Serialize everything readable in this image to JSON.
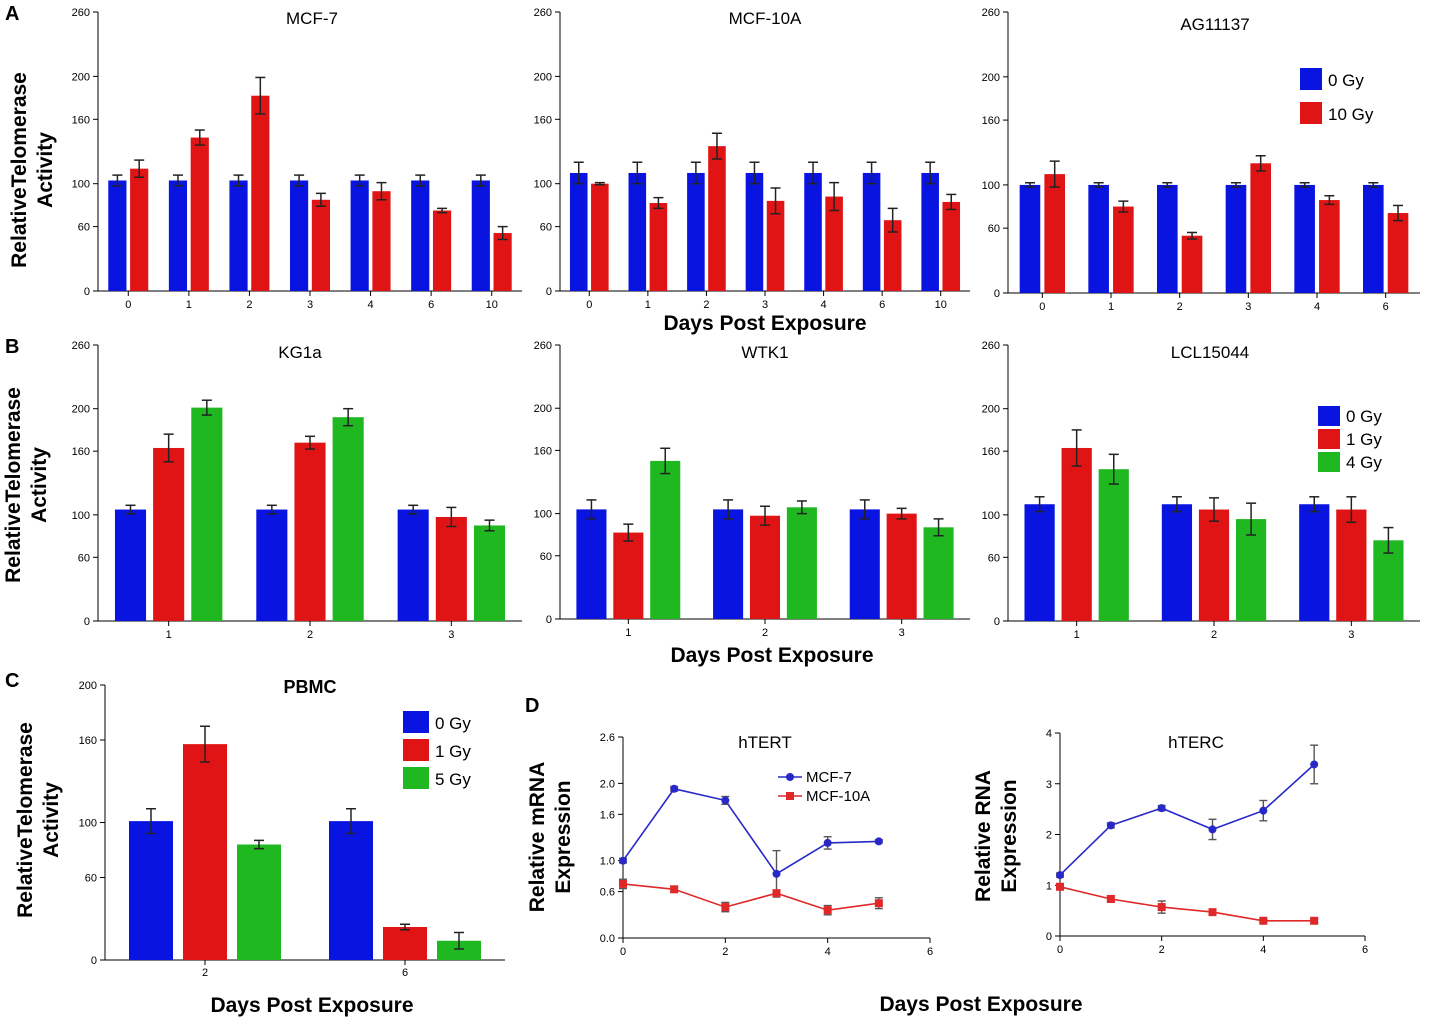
{
  "figure": {
    "panel_labels": [
      "A",
      "B",
      "C",
      "D"
    ],
    "ylabel_telomerase": [
      "RelativeTelomerase",
      "Activity"
    ],
    "ylabel_mrna": [
      "Relative mRNA",
      "Expression"
    ],
    "ylabel_rna": [
      "Relative RNA",
      "Expression"
    ],
    "xlabel": "Days Post Exposure",
    "colors": {
      "g0": "#0a14e0",
      "g1": "#e01414",
      "g2": "#20b820",
      "line_mcf7": "#2828c8",
      "line_mcf10a": "#e02828"
    }
  },
  "chart_data": [
    {
      "id": "A1",
      "type": "bar",
      "title": "MCF-7",
      "categories": [
        "0",
        "1",
        "2",
        "3",
        "4",
        "6",
        "10"
      ],
      "ylim": [
        0,
        260
      ],
      "yticks": [
        0,
        60,
        100,
        160,
        200,
        260
      ],
      "series": [
        {
          "name": "0 Gy",
          "values": [
            103,
            103,
            103,
            103,
            103,
            103,
            103
          ],
          "errors": [
            5,
            5,
            5,
            5,
            5,
            5,
            5
          ]
        },
        {
          "name": "10 Gy",
          "values": [
            114,
            143,
            182,
            85,
            93,
            75,
            54
          ],
          "errors": [
            8,
            7,
            17,
            6,
            8,
            2,
            6
          ]
        }
      ]
    },
    {
      "id": "A2",
      "type": "bar",
      "title": "MCF-10A",
      "categories": [
        "0",
        "1",
        "2",
        "3",
        "4",
        "6",
        "10"
      ],
      "ylim": [
        0,
        260
      ],
      "yticks": [
        0,
        60,
        100,
        160,
        200,
        260
      ],
      "series": [
        {
          "name": "0 Gy",
          "values": [
            110,
            110,
            110,
            110,
            110,
            110,
            110
          ],
          "errors": [
            10,
            10,
            10,
            10,
            10,
            10,
            10
          ]
        },
        {
          "name": "10 Gy",
          "values": [
            100,
            82,
            135,
            84,
            88,
            66,
            83
          ],
          "errors": [
            1,
            5,
            12,
            12,
            13,
            11,
            7
          ]
        }
      ]
    },
    {
      "id": "A3",
      "type": "bar",
      "title": "AG11137",
      "categories": [
        "0",
        "1",
        "2",
        "3",
        "4",
        "6"
      ],
      "ylim": [
        0,
        260
      ],
      "yticks": [
        0,
        60,
        100,
        160,
        200,
        260
      ],
      "legend": [
        "0 Gy",
        "10 Gy"
      ],
      "series": [
        {
          "name": "0 Gy",
          "values": [
            100,
            100,
            100,
            100,
            100,
            100
          ],
          "errors": [
            2,
            2,
            2,
            2,
            2,
            2
          ]
        },
        {
          "name": "10 Gy",
          "values": [
            110,
            80,
            53,
            120,
            86,
            74
          ],
          "errors": [
            12,
            5,
            3,
            7,
            4,
            7
          ]
        }
      ]
    },
    {
      "id": "B1",
      "type": "bar",
      "title": "KG1a",
      "categories": [
        "1",
        "2",
        "3"
      ],
      "ylim": [
        0,
        260
      ],
      "yticks": [
        0,
        60,
        100,
        160,
        200,
        260
      ],
      "series": [
        {
          "name": "0 Gy",
          "values": [
            105,
            105,
            105
          ],
          "errors": [
            4,
            4,
            4
          ]
        },
        {
          "name": "1 Gy",
          "values": [
            163,
            168,
            98
          ],
          "errors": [
            13,
            6,
            9
          ]
        },
        {
          "name": "4 Gy",
          "values": [
            201,
            192,
            90
          ],
          "errors": [
            7,
            8,
            5
          ]
        }
      ]
    },
    {
      "id": "B2",
      "type": "bar",
      "title": "WTK1",
      "categories": [
        "1",
        "2",
        "3"
      ],
      "ylim": [
        0,
        260
      ],
      "yticks": [
        0,
        60,
        100,
        160,
        200,
        260
      ],
      "series": [
        {
          "name": "0 Gy",
          "values": [
            104,
            104,
            104
          ],
          "errors": [
            9,
            9,
            9
          ]
        },
        {
          "name": "1 Gy",
          "values": [
            82,
            98,
            100
          ],
          "errors": [
            8,
            9,
            5
          ]
        },
        {
          "name": "4 Gy",
          "values": [
            150,
            106,
            87
          ],
          "errors": [
            12,
            6,
            8
          ]
        }
      ]
    },
    {
      "id": "B3",
      "type": "bar",
      "title": "LCL15044",
      "categories": [
        "1",
        "2",
        "3"
      ],
      "ylim": [
        0,
        260
      ],
      "yticks": [
        0,
        60,
        100,
        160,
        200,
        260
      ],
      "legend": [
        "0 Gy",
        "1 Gy",
        "4 Gy"
      ],
      "series": [
        {
          "name": "0 Gy",
          "values": [
            110,
            110,
            110
          ],
          "errors": [
            7,
            7,
            7
          ]
        },
        {
          "name": "1 Gy",
          "values": [
            163,
            105,
            105
          ],
          "errors": [
            17,
            11,
            12
          ]
        },
        {
          "name": "4 Gy",
          "values": [
            143,
            96,
            76
          ],
          "errors": [
            14,
            15,
            12
          ]
        }
      ]
    },
    {
      "id": "C",
      "type": "bar",
      "title": "PBMC",
      "categories": [
        "2",
        "6"
      ],
      "ylim": [
        0,
        200
      ],
      "yticks": [
        0,
        60,
        100,
        160,
        200
      ],
      "legend": [
        "0 Gy",
        "1 Gy",
        "5 Gy"
      ],
      "series": [
        {
          "name": "0 Gy",
          "values": [
            101,
            101
          ],
          "errors": [
            9,
            9
          ]
        },
        {
          "name": "1 Gy",
          "values": [
            157,
            24
          ],
          "errors": [
            13,
            2
          ]
        },
        {
          "name": "5 Gy",
          "values": [
            84,
            14
          ],
          "errors": [
            3,
            6
          ]
        }
      ]
    },
    {
      "id": "D1",
      "type": "line",
      "title": "hTERT",
      "xlim": [
        0,
        6
      ],
      "xticks": [
        0,
        2,
        4,
        6
      ],
      "ylim": [
        0,
        2.6
      ],
      "yticks": [
        "0.0",
        "0.6",
        "1.0",
        "1.6",
        "2.0",
        "2.6"
      ],
      "ytick_values": [
        0,
        0.6,
        1.0,
        1.6,
        2.0,
        2.6
      ],
      "legend": [
        "MCF-7",
        "MCF-10A"
      ],
      "series": [
        {
          "name": "MCF-7",
          "x": [
            0,
            1,
            2,
            3,
            4,
            5
          ],
          "y": [
            1.0,
            1.93,
            1.78,
            0.83,
            1.23,
            1.25
          ],
          "errors": [
            0.03,
            0.03,
            0.05,
            0.3,
            0.08,
            0.02
          ]
        },
        {
          "name": "MCF-10A",
          "x": [
            0,
            1,
            2,
            3,
            4,
            5
          ],
          "y": [
            0.7,
            0.63,
            0.4,
            0.58,
            0.36,
            0.45
          ],
          "errors": [
            0.06,
            0.04,
            0.06,
            0.03,
            0.06,
            0.07
          ]
        }
      ]
    },
    {
      "id": "D2",
      "type": "line",
      "title": "hTERC",
      "xlim": [
        0,
        6
      ],
      "xticks": [
        0,
        2,
        4,
        6
      ],
      "ylim": [
        0,
        4
      ],
      "yticks": [
        "0",
        "1",
        "2",
        "3",
        "4"
      ],
      "ytick_values": [
        0,
        1,
        2,
        3,
        4
      ],
      "series": [
        {
          "name": "MCF-7",
          "x": [
            0,
            1,
            2,
            3,
            4,
            5
          ],
          "y": [
            1.2,
            2.18,
            2.52,
            2.1,
            2.47,
            3.38
          ],
          "errors": [
            0.04,
            0.05,
            0.05,
            0.2,
            0.2,
            0.38
          ]
        },
        {
          "name": "MCF-10A",
          "x": [
            0,
            1,
            2,
            3,
            4,
            5
          ],
          "y": [
            0.97,
            0.73,
            0.57,
            0.47,
            0.3,
            0.3
          ],
          "errors": [
            0.05,
            0.06,
            0.12,
            0.05,
            0.03,
            0.04
          ]
        }
      ]
    }
  ]
}
